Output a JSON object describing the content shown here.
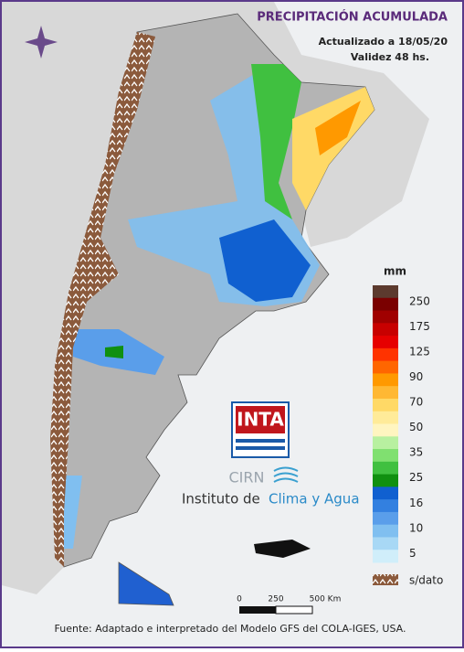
{
  "header": {
    "title": "PRECIPITACIÓN ACUMULADA",
    "updated": "Actualizado a 18/05/20",
    "validity": "Validez 48 hs."
  },
  "legend": {
    "unit": "mm",
    "colors": [
      "#5c3a2e",
      "#7a0000",
      "#a00000",
      "#c80000",
      "#e60000",
      "#ff3300",
      "#ff6600",
      "#ff9900",
      "#ffb833",
      "#ffd966",
      "#ffeb99",
      "#fff5c0",
      "#b8f0a0",
      "#80e070",
      "#40c040",
      "#109010",
      "#1060d0",
      "#3380e0",
      "#5a9eea",
      "#80bff0",
      "#a8d8f5",
      "#d0eefa"
    ],
    "labels": [
      "250",
      "175",
      "125",
      "90",
      "70",
      "50",
      "35",
      "25",
      "16",
      "10",
      "5"
    ],
    "no_data": "s/dato"
  },
  "logo": {
    "inta": "INTA",
    "cirn": "CIRN",
    "institute": "Instituto de",
    "institute_highlight": "Clima y Agua"
  },
  "scale": {
    "labels": [
      "0",
      "250",
      "500 Km"
    ]
  },
  "footer": "Fuente: Adaptado e interpretado del Modelo GFS del COLA-IGES, USA."
}
